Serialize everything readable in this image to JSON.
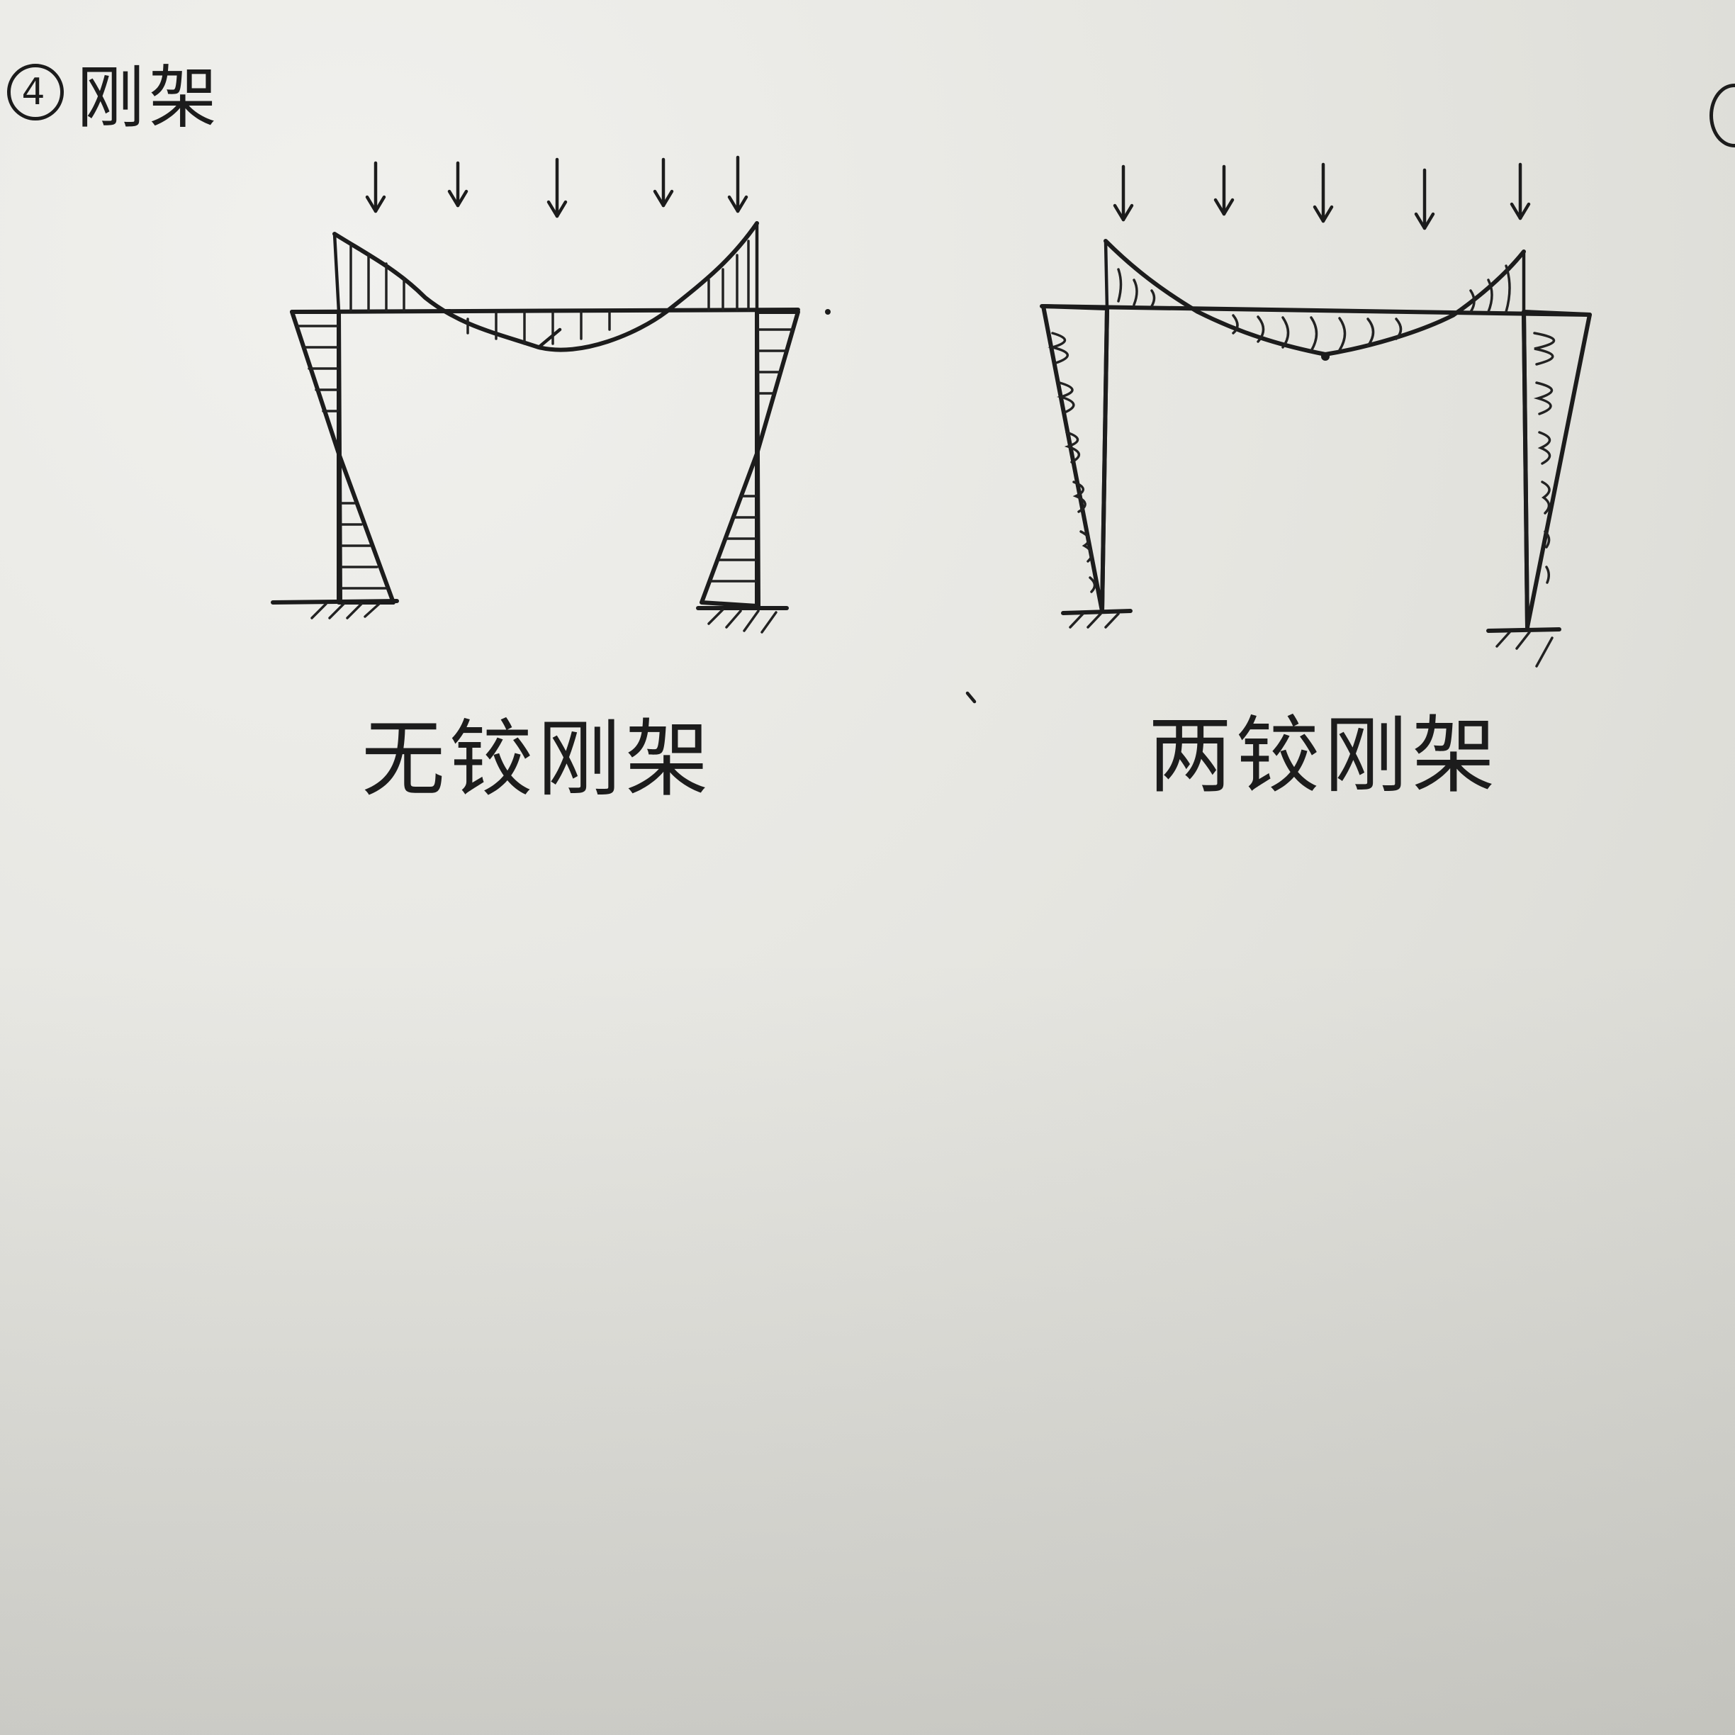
{
  "header": {
    "number": "4",
    "title": "刚架"
  },
  "figures": [
    {
      "caption": "无铰刚架"
    },
    {
      "caption": "两铰刚架"
    }
  ]
}
